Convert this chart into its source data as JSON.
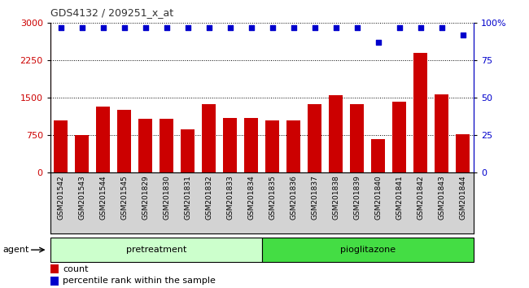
{
  "title": "GDS4132 / 209251_x_at",
  "categories": [
    "GSM201542",
    "GSM201543",
    "GSM201544",
    "GSM201545",
    "GSM201829",
    "GSM201830",
    "GSM201831",
    "GSM201832",
    "GSM201833",
    "GSM201834",
    "GSM201835",
    "GSM201836",
    "GSM201837",
    "GSM201838",
    "GSM201839",
    "GSM201840",
    "GSM201841",
    "GSM201842",
    "GSM201843",
    "GSM201844"
  ],
  "counts": [
    1050,
    760,
    1320,
    1260,
    1080,
    1080,
    870,
    1380,
    1100,
    1100,
    1050,
    1050,
    1380,
    1550,
    1380,
    680,
    1420,
    2400,
    1570,
    780
  ],
  "percentiles": [
    97,
    97,
    97,
    97,
    97,
    97,
    97,
    97,
    97,
    97,
    97,
    97,
    97,
    97,
    97,
    87,
    97,
    97,
    97,
    92
  ],
  "bar_color": "#cc0000",
  "dot_color": "#0000cc",
  "ylim_left": [
    0,
    3000
  ],
  "ylim_right": [
    0,
    100
  ],
  "yticks_left": [
    0,
    750,
    1500,
    2250,
    3000
  ],
  "yticks_right": [
    0,
    25,
    50,
    75,
    100
  ],
  "group1_label": "pretreatment",
  "group2_label": "pioglitazone",
  "group1_indices": [
    0,
    9
  ],
  "group2_indices": [
    10,
    19
  ],
  "agent_label": "agent",
  "legend_count_label": "count",
  "legend_pct_label": "percentile rank within the sample",
  "group1_color": "#ccffcc",
  "group2_color": "#44dd44",
  "left_axis_color": "#cc0000",
  "right_axis_color": "#0000cc",
  "title_color": "#333333"
}
